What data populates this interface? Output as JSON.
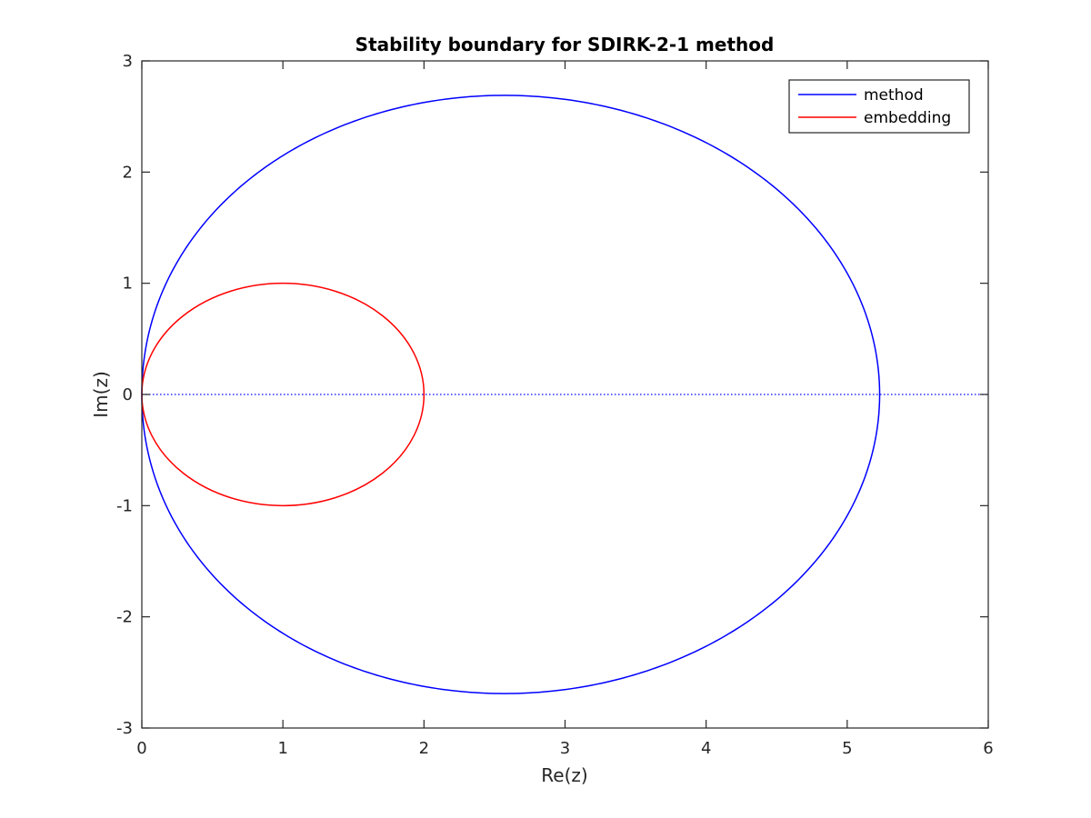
{
  "chart_data": {
    "type": "line",
    "title": "Stability boundary for SDIRK-2-1 method",
    "xlabel": "Re(z)",
    "ylabel": "Im(z)",
    "xlim": [
      0,
      6
    ],
    "ylim": [
      -3,
      3
    ],
    "xticks": [
      "0",
      "1",
      "2",
      "3",
      "4",
      "5",
      "6"
    ],
    "yticks": [
      "-3",
      "-2",
      "-1",
      "0",
      "1",
      "2",
      "3"
    ],
    "grid": false,
    "legend_placement": "top-right",
    "series": [
      {
        "name": "method",
        "color": "#0000ff",
        "shape": "closed curve",
        "x_extent": [
          0,
          5.23
        ],
        "y_extent": [
          -2.69,
          2.69
        ],
        "x_at_max_abs_y": 2.57
      },
      {
        "name": "embedding",
        "color": "#ff0000",
        "shape": "circle",
        "center": [
          1,
          0
        ],
        "radius": 1
      }
    ],
    "reference_line": {
      "style": "dotted",
      "color": "#0000ff",
      "y": 0,
      "x_range": [
        0,
        6
      ]
    }
  }
}
